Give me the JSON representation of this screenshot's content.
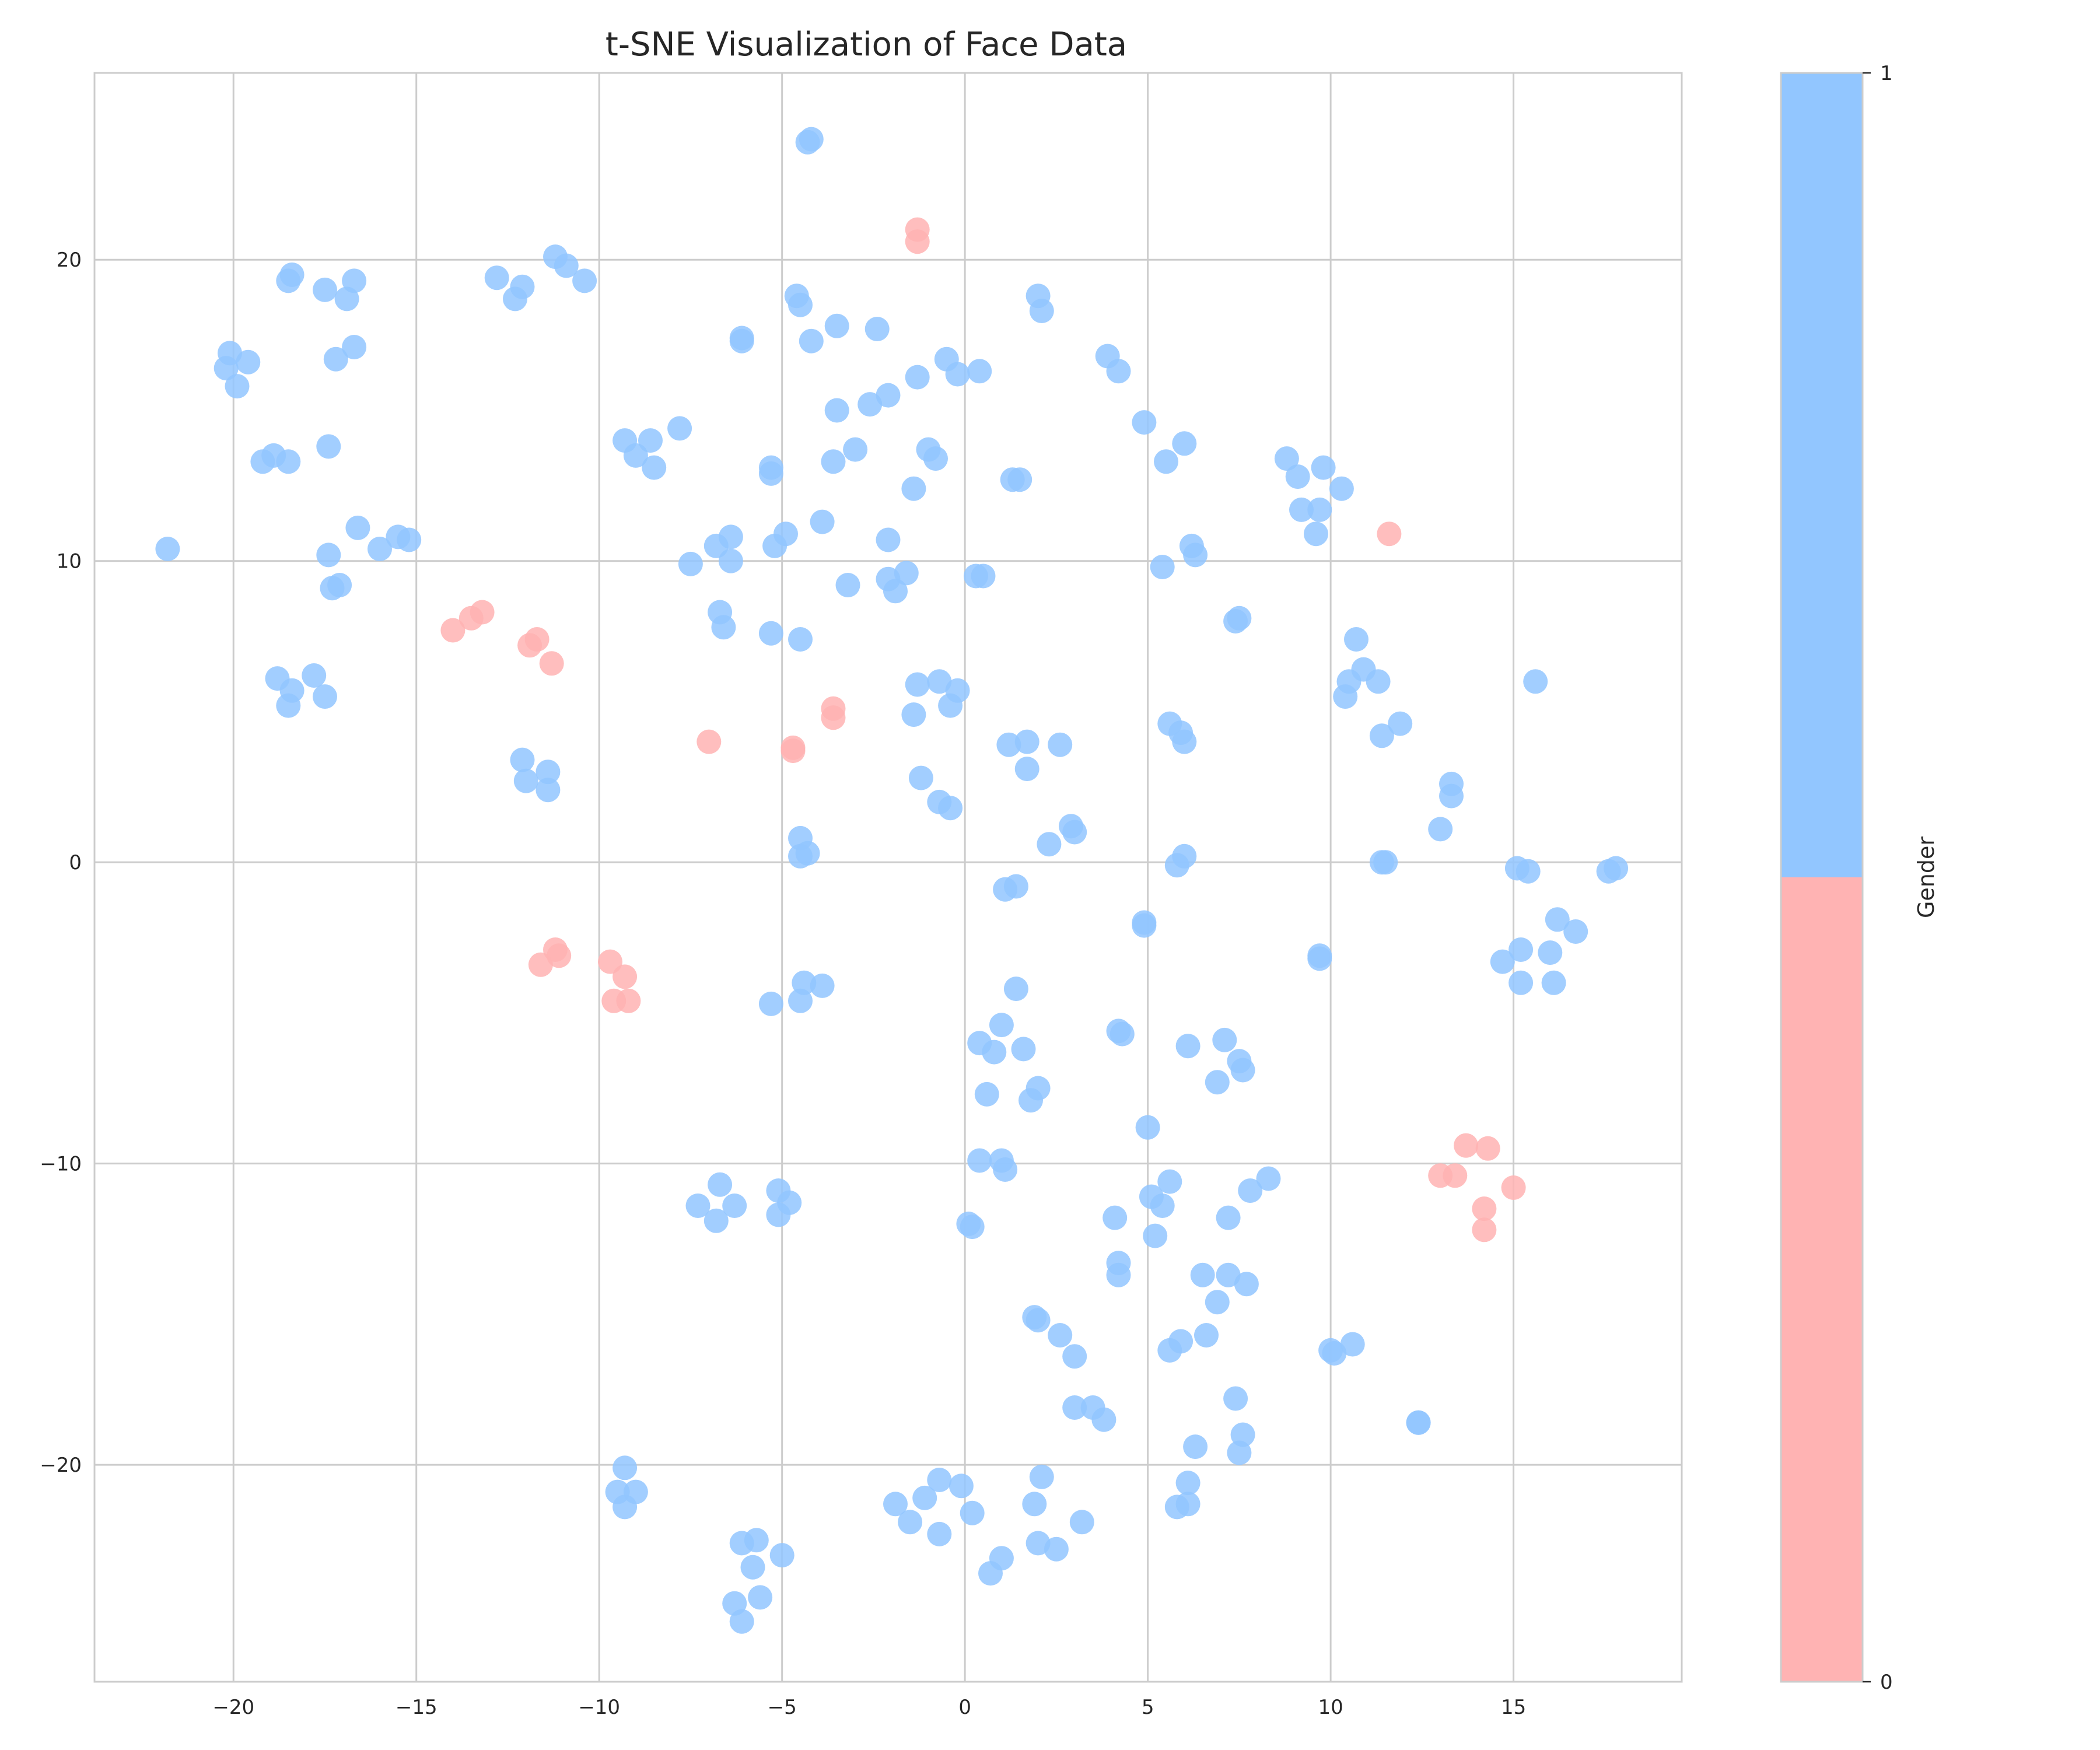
{
  "chart_data": {
    "type": "scatter",
    "title": "t-SNE Visualization of Face Data",
    "xlabel": "",
    "ylabel": "",
    "xlim": [
      -23.8,
      19.6
    ],
    "ylim": [
      -27.2,
      26.2
    ],
    "grid": true,
    "x_ticks": [
      -20,
      -15,
      -10,
      -5,
      0,
      5,
      10,
      15
    ],
    "y_ticks": [
      -20,
      -10,
      0,
      10,
      20
    ],
    "x_tick_labels": [
      "−20",
      "−15",
      "−10",
      "−5",
      "0",
      "5",
      "10",
      "15"
    ],
    "y_tick_labels": [
      "−20",
      "−10",
      "0",
      "10",
      "20"
    ],
    "colorbar": {
      "label": "Gender",
      "ticks": [
        0,
        1
      ],
      "tick_labels": [
        "0",
        "1"
      ],
      "colors": {
        "0": "#ffb3b3",
        "1": "#92c6ff"
      }
    },
    "points": [
      [
        -21.8,
        10.4,
        1
      ],
      [
        -20.2,
        16.4,
        1
      ],
      [
        -20.1,
        16.9,
        1
      ],
      [
        -19.9,
        15.8,
        1
      ],
      [
        -19.6,
        16.6,
        1
      ],
      [
        -19.2,
        13.3,
        1
      ],
      [
        -18.9,
        13.5,
        1
      ],
      [
        -18.5,
        13.3,
        1
      ],
      [
        -18.5,
        19.3,
        1
      ],
      [
        -18.4,
        19.5,
        1
      ],
      [
        -17.5,
        19.0,
        1
      ],
      [
        -17.4,
        13.8,
        1
      ],
      [
        -16.9,
        18.7,
        1
      ],
      [
        -16.7,
        19.3,
        1
      ],
      [
        -16.7,
        17.1,
        1
      ],
      [
        -17.2,
        16.7,
        1
      ],
      [
        -17.4,
        10.2,
        1
      ],
      [
        -17.3,
        9.1,
        1
      ],
      [
        -17.1,
        9.2,
        1
      ],
      [
        -16.6,
        11.1,
        1
      ],
      [
        -16.0,
        10.4,
        1
      ],
      [
        -15.5,
        10.8,
        1
      ],
      [
        -15.2,
        10.7,
        1
      ],
      [
        -18.8,
        6.1,
        1
      ],
      [
        -17.8,
        6.2,
        1
      ],
      [
        -18.4,
        5.7,
        1
      ],
      [
        -18.5,
        5.2,
        1
      ],
      [
        -17.5,
        5.5,
        1
      ],
      [
        -14.0,
        7.7,
        0
      ],
      [
        -13.5,
        8.1,
        0
      ],
      [
        -13.2,
        8.3,
        0
      ],
      [
        -12.8,
        19.4,
        1
      ],
      [
        -12.3,
        18.7,
        1
      ],
      [
        -12.1,
        19.1,
        1
      ],
      [
        -11.9,
        7.2,
        0
      ],
      [
        -11.7,
        7.4,
        0
      ],
      [
        -11.3,
        6.6,
        0
      ],
      [
        -11.2,
        20.1,
        1
      ],
      [
        -10.9,
        19.8,
        1
      ],
      [
        -10.4,
        19.3,
        1
      ],
      [
        -12.1,
        3.4,
        1
      ],
      [
        -12.0,
        2.7,
        1
      ],
      [
        -11.4,
        3.0,
        1
      ],
      [
        -11.4,
        2.4,
        1
      ],
      [
        -11.6,
        -3.4,
        0
      ],
      [
        -11.2,
        -2.9,
        0
      ],
      [
        -11.1,
        -3.1,
        0
      ],
      [
        -9.7,
        -3.3,
        0
      ],
      [
        -9.6,
        -4.6,
        0
      ],
      [
        -9.3,
        -3.8,
        0
      ],
      [
        -9.2,
        -4.6,
        0
      ],
      [
        -9.3,
        14.0,
        1
      ],
      [
        -9.0,
        13.5,
        1
      ],
      [
        -8.6,
        14.0,
        1
      ],
      [
        -8.5,
        13.1,
        1
      ],
      [
        -7.8,
        14.4,
        1
      ],
      [
        -7.5,
        9.9,
        1
      ],
      [
        -7.0,
        4.0,
        0
      ],
      [
        -6.8,
        10.5,
        1
      ],
      [
        -6.7,
        8.3,
        1
      ],
      [
        -6.6,
        7.8,
        1
      ],
      [
        -6.4,
        10.0,
        1
      ],
      [
        -6.4,
        10.8,
        1
      ],
      [
        -6.1,
        17.4,
        1
      ],
      [
        -6.1,
        17.3,
        1
      ],
      [
        -5.3,
        13.1,
        1
      ],
      [
        -5.3,
        12.9,
        1
      ],
      [
        -5.2,
        10.5,
        1
      ],
      [
        -5.3,
        7.6,
        1
      ],
      [
        -4.9,
        10.9,
        1
      ],
      [
        -4.6,
        18.8,
        1
      ],
      [
        -4.5,
        18.5,
        1
      ],
      [
        -4.5,
        7.4,
        1
      ],
      [
        -4.7,
        3.8,
        0
      ],
      [
        -4.7,
        3.7,
        0
      ],
      [
        -4.3,
        23.9,
        1
      ],
      [
        -4.2,
        24.0,
        1
      ],
      [
        -4.2,
        17.3,
        1
      ],
      [
        -3.5,
        17.8,
        1
      ],
      [
        -3.6,
        13.3,
        1
      ],
      [
        -3.5,
        15.0,
        1
      ],
      [
        -3.9,
        11.3,
        1
      ],
      [
        -3.2,
        9.2,
        1
      ],
      [
        -3.6,
        5.1,
        0
      ],
      [
        -3.6,
        4.8,
        0
      ],
      [
        -3.0,
        13.7,
        1
      ],
      [
        -2.6,
        15.2,
        1
      ],
      [
        -2.4,
        17.7,
        1
      ],
      [
        -2.1,
        15.5,
        1
      ],
      [
        -2.1,
        10.7,
        1
      ],
      [
        -2.1,
        9.4,
        1
      ],
      [
        -1.9,
        9.0,
        1
      ],
      [
        -1.6,
        9.6,
        1
      ],
      [
        -1.4,
        12.4,
        1
      ],
      [
        -1.3,
        16.1,
        1
      ],
      [
        -1.3,
        21.0,
        0
      ],
      [
        -1.3,
        20.6,
        0
      ],
      [
        -1.0,
        13.7,
        1
      ],
      [
        -0.8,
        13.4,
        1
      ],
      [
        -0.5,
        16.7,
        1
      ],
      [
        -0.2,
        16.2,
        1
      ],
      [
        0.4,
        16.3,
        1
      ],
      [
        0.3,
        9.5,
        1
      ],
      [
        0.5,
        9.5,
        1
      ],
      [
        -0.7,
        6.0,
        1
      ],
      [
        -0.2,
        5.7,
        1
      ],
      [
        -1.4,
        4.9,
        1
      ],
      [
        -1.3,
        5.9,
        1
      ],
      [
        -0.4,
        5.2,
        1
      ],
      [
        -1.2,
        2.8,
        1
      ],
      [
        -0.7,
        2.0,
        1
      ],
      [
        -0.4,
        1.8,
        1
      ],
      [
        -4.5,
        0.8,
        1
      ],
      [
        -4.5,
        0.2,
        1
      ],
      [
        -4.3,
        0.3,
        1
      ],
      [
        -4.4,
        -4.0,
        1
      ],
      [
        -4.5,
        -4.6,
        1
      ],
      [
        -3.9,
        -4.1,
        1
      ],
      [
        -5.3,
        -4.7,
        1
      ],
      [
        1.3,
        12.7,
        1
      ],
      [
        1.5,
        12.7,
        1
      ],
      [
        2.0,
        18.8,
        1
      ],
      [
        2.1,
        18.3,
        1
      ],
      [
        1.2,
        3.9,
        1
      ],
      [
        1.7,
        4.0,
        1
      ],
      [
        2.6,
        3.9,
        1
      ],
      [
        1.7,
        3.1,
        1
      ],
      [
        2.3,
        0.6,
        1
      ],
      [
        2.9,
        1.2,
        1
      ],
      [
        3.0,
        1.0,
        1
      ],
      [
        1.1,
        -0.9,
        1
      ],
      [
        1.4,
        -0.8,
        1
      ],
      [
        1.4,
        -4.2,
        1
      ],
      [
        1.0,
        -5.4,
        1
      ],
      [
        0.4,
        -6.0,
        1
      ],
      [
        0.8,
        -6.3,
        1
      ],
      [
        1.6,
        -6.2,
        1
      ],
      [
        0.6,
        -7.7,
        1
      ],
      [
        2.0,
        -7.5,
        1
      ],
      [
        1.8,
        -7.9,
        1
      ],
      [
        0.4,
        -9.9,
        1
      ],
      [
        1.0,
        -9.9,
        1
      ],
      [
        1.1,
        -10.2,
        1
      ],
      [
        3.9,
        16.8,
        1
      ],
      [
        4.2,
        16.3,
        1
      ],
      [
        4.9,
        14.6,
        1
      ],
      [
        5.5,
        13.3,
        1
      ],
      [
        6.0,
        13.9,
        1
      ],
      [
        5.4,
        9.8,
        1
      ],
      [
        6.2,
        10.5,
        1
      ],
      [
        6.3,
        10.2,
        1
      ],
      [
        5.6,
        4.6,
        1
      ],
      [
        5.9,
        4.3,
        1
      ],
      [
        6.0,
        4.0,
        1
      ],
      [
        7.4,
        8.0,
        1
      ],
      [
        7.5,
        8.1,
        1
      ],
      [
        5.8,
        -0.1,
        1
      ],
      [
        6.0,
        0.2,
        1
      ],
      [
        4.9,
        -2.0,
        1
      ],
      [
        4.9,
        -2.1,
        1
      ],
      [
        4.2,
        -5.6,
        1
      ],
      [
        4.3,
        -5.7,
        1
      ],
      [
        6.1,
        -6.1,
        1
      ],
      [
        7.1,
        -5.9,
        1
      ],
      [
        7.5,
        -6.6,
        1
      ],
      [
        7.6,
        -6.9,
        1
      ],
      [
        6.9,
        -7.3,
        1
      ],
      [
        5.0,
        -8.8,
        1
      ],
      [
        -7.3,
        -11.4,
        1
      ],
      [
        -6.7,
        -10.7,
        1
      ],
      [
        -6.8,
        -11.9,
        1
      ],
      [
        -6.3,
        -11.4,
        1
      ],
      [
        -5.1,
        -10.9,
        1
      ],
      [
        -5.1,
        -11.7,
        1
      ],
      [
        -4.8,
        -11.3,
        1
      ],
      [
        0.1,
        -12.0,
        1
      ],
      [
        0.2,
        -12.1,
        1
      ],
      [
        4.1,
        -11.8,
        1
      ],
      [
        5.1,
        -11.1,
        1
      ],
      [
        5.6,
        -10.6,
        1
      ],
      [
        5.4,
        -11.4,
        1
      ],
      [
        5.2,
        -12.4,
        1
      ],
      [
        4.2,
        -13.3,
        1
      ],
      [
        4.2,
        -13.7,
        1
      ],
      [
        6.5,
        -13.7,
        1
      ],
      [
        7.2,
        -13.7,
        1
      ],
      [
        7.7,
        -14.0,
        1
      ],
      [
        6.9,
        -14.6,
        1
      ],
      [
        7.2,
        -11.8,
        1
      ],
      [
        7.8,
        -10.9,
        1
      ],
      [
        8.3,
        -10.5,
        1
      ],
      [
        1.9,
        -15.1,
        1
      ],
      [
        2.0,
        -15.2,
        1
      ],
      [
        2.6,
        -15.7,
        1
      ],
      [
        3.0,
        -16.4,
        1
      ],
      [
        5.6,
        -16.2,
        1
      ],
      [
        5.9,
        -15.9,
        1
      ],
      [
        6.6,
        -15.7,
        1
      ],
      [
        3.0,
        -18.1,
        1
      ],
      [
        3.5,
        -18.1,
        1
      ],
      [
        3.8,
        -18.5,
        1
      ],
      [
        7.4,
        -17.8,
        1
      ],
      [
        7.6,
        -19.0,
        1
      ],
      [
        7.5,
        -19.6,
        1
      ],
      [
        6.3,
        -19.4,
        1
      ],
      [
        6.1,
        -20.6,
        1
      ],
      [
        6.1,
        -21.3,
        1
      ],
      [
        5.8,
        -21.4,
        1
      ],
      [
        2.1,
        -20.4,
        1
      ],
      [
        1.9,
        -21.3,
        1
      ],
      [
        3.2,
        -21.9,
        1
      ],
      [
        2.0,
        -22.6,
        1
      ],
      [
        2.5,
        -22.8,
        1
      ],
      [
        1.0,
        -23.1,
        1
      ],
      [
        0.7,
        -23.6,
        1
      ],
      [
        -0.1,
        -20.7,
        1
      ],
      [
        -0.7,
        -20.5,
        1
      ],
      [
        0.2,
        -21.6,
        1
      ],
      [
        -1.1,
        -21.1,
        1
      ],
      [
        -1.9,
        -21.3,
        1
      ],
      [
        -1.5,
        -21.9,
        1
      ],
      [
        -0.7,
        -22.3,
        1
      ],
      [
        -5.0,
        -23.0,
        1
      ],
      [
        -5.7,
        -22.5,
        1
      ],
      [
        -6.1,
        -22.6,
        1
      ],
      [
        -5.8,
        -23.4,
        1
      ],
      [
        -5.6,
        -24.4,
        1
      ],
      [
        -6.3,
        -24.6,
        1
      ],
      [
        -6.1,
        -25.2,
        1
      ],
      [
        -9.3,
        -20.1,
        1
      ],
      [
        -9.5,
        -20.9,
        1
      ],
      [
        -9.0,
        -20.9,
        1
      ],
      [
        -9.3,
        -21.4,
        1
      ],
      [
        8.8,
        13.4,
        1
      ],
      [
        9.1,
        12.8,
        1
      ],
      [
        9.2,
        11.7,
        1
      ],
      [
        9.8,
        13.1,
        1
      ],
      [
        9.6,
        10.9,
        1
      ],
      [
        9.7,
        11.7,
        1
      ],
      [
        10.3,
        12.4,
        1
      ],
      [
        11.6,
        10.9,
        0
      ],
      [
        10.7,
        7.4,
        1
      ],
      [
        10.9,
        6.4,
        1
      ],
      [
        10.5,
        6.0,
        1
      ],
      [
        10.4,
        5.5,
        1
      ],
      [
        11.3,
        6.0,
        1
      ],
      [
        11.4,
        4.2,
        1
      ],
      [
        11.9,
        4.6,
        1
      ],
      [
        11.4,
        0.0,
        1
      ],
      [
        11.5,
        0.0,
        1
      ],
      [
        9.7,
        -3.1,
        1
      ],
      [
        9.7,
        -3.2,
        1
      ],
      [
        13.0,
        1.1,
        1
      ],
      [
        13.3,
        2.6,
        1
      ],
      [
        13.3,
        2.2,
        1
      ],
      [
        15.6,
        6.0,
        1
      ],
      [
        15.1,
        -0.2,
        1
      ],
      [
        15.4,
        -0.3,
        1
      ],
      [
        17.6,
        -0.3,
        1
      ],
      [
        17.8,
        -0.2,
        1
      ],
      [
        16.2,
        -1.9,
        1
      ],
      [
        16.7,
        -2.3,
        1
      ],
      [
        15.2,
        -2.9,
        1
      ],
      [
        14.7,
        -3.3,
        1
      ],
      [
        16.0,
        -3.0,
        1
      ],
      [
        15.2,
        -4.0,
        1
      ],
      [
        16.1,
        -4.0,
        1
      ],
      [
        13.0,
        -10.4,
        0
      ],
      [
        13.4,
        -10.4,
        0
      ],
      [
        13.7,
        -9.4,
        0
      ],
      [
        14.3,
        -9.5,
        0
      ],
      [
        15.0,
        -10.8,
        0
      ],
      [
        14.2,
        -11.5,
        0
      ],
      [
        14.2,
        -12.2,
        0
      ],
      [
        10.0,
        -16.2,
        1
      ],
      [
        10.1,
        -16.3,
        1
      ],
      [
        10.6,
        -16.0,
        1
      ],
      [
        12.4,
        -18.6,
        1
      ],
      [
        12.4,
        -18.6,
        1
      ]
    ]
  }
}
